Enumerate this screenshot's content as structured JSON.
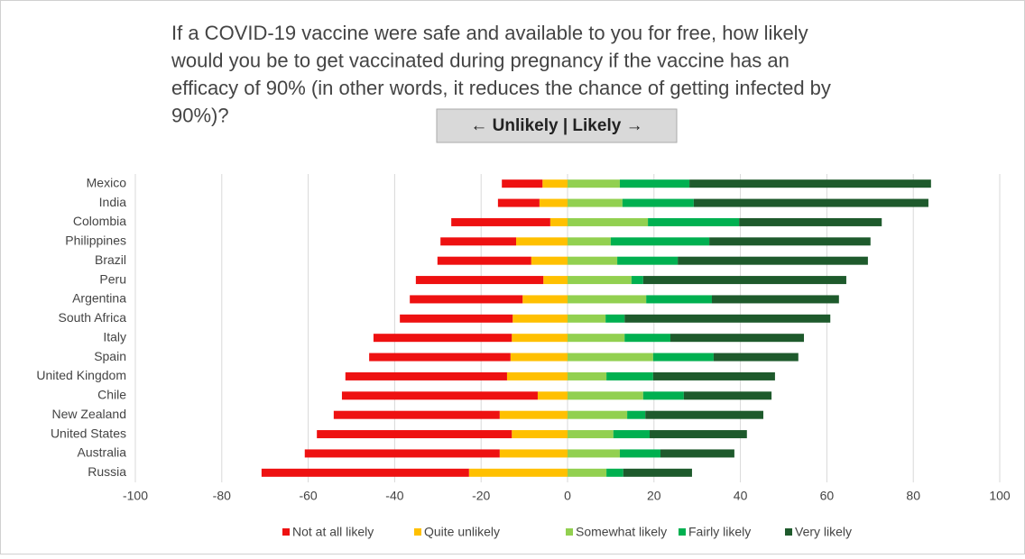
{
  "chart_data": {
    "type": "diverging_bar",
    "title_lines": [
      "If a COVID-19 vaccine were safe and available to you for free, how likely",
      "would you be to get vaccinated during pregnancy if the vaccine has an",
      "efficacy of  90% (in other words, it reduces the chance of getting infected by",
      "90%)?"
    ],
    "annotation": "← Unlikely | Likely →",
    "categories": [
      "Mexico",
      "India",
      "Colombia",
      "Philippines",
      "Brazil",
      "Peru",
      "Argentina",
      "South Africa",
      "Italy",
      "Spain",
      "United Kingdom",
      "Chile",
      "New Zealand",
      "United States",
      "Australia",
      "Russia"
    ],
    "series": [
      {
        "name": "Not at all likely",
        "color": "#ee1111",
        "values": [
          -9.4,
          -9.6,
          -22.9,
          -17.5,
          -21.7,
          -29.5,
          -26.1,
          -26.1,
          -32,
          -32.7,
          -37.4,
          -45.3,
          -38.4,
          -45.1,
          -45.1,
          -48
        ]
      },
      {
        "name": "Quite unlikely",
        "color": "#ffc000",
        "values": [
          -5.8,
          -6.5,
          -4,
          -11.9,
          -8.4,
          -5.6,
          -10.4,
          -12.7,
          -12.9,
          -13.2,
          -14,
          -6.9,
          -15.7,
          -12.9,
          -15.7,
          -22.8
        ]
      },
      {
        "name": "Somewhat likely",
        "color": "#92d050",
        "values": [
          12.1,
          12.7,
          18.6,
          10,
          11.5,
          14.8,
          18.2,
          8.8,
          13.2,
          19.8,
          9,
          17.5,
          13.8,
          10.6,
          12.1,
          9
        ]
      },
      {
        "name": "Fairly likely",
        "color": "#00b050",
        "values": [
          16.1,
          16.5,
          21.1,
          22.8,
          14,
          2.7,
          15.2,
          4.4,
          10.6,
          14,
          10.8,
          9.4,
          4.2,
          8.4,
          9.4,
          3.9
        ]
      },
      {
        "name": "Very likely",
        "color": "#1e5a2c",
        "values": [
          55.9,
          54.3,
          33,
          37.3,
          44,
          47,
          29.4,
          47.6,
          30.9,
          19.6,
          28.2,
          20.3,
          27.3,
          22.5,
          17.1,
          15.9
        ]
      }
    ],
    "xlim": [
      -100,
      100
    ],
    "xticks": [
      -100,
      -80,
      -60,
      -40,
      -20,
      0,
      20,
      40,
      60,
      80,
      100
    ],
    "grid": true,
    "legend": "bottom"
  }
}
